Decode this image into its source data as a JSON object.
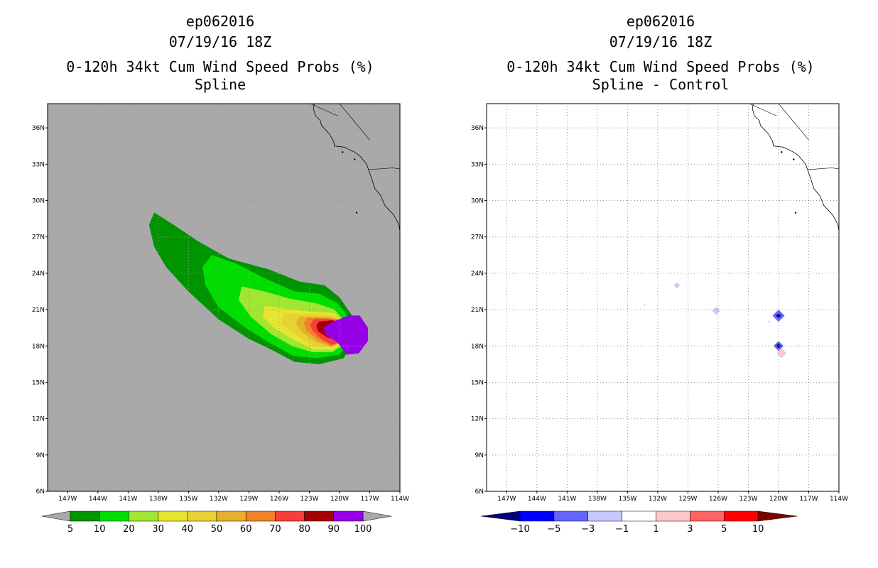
{
  "left_panel": {
    "title_line1": "ep062016",
    "title_line2": "07/19/16 18Z",
    "title_line3": "0-120h 34kt Cum Wind Speed Probs (%)",
    "title_line4": "Spline"
  },
  "right_panel": {
    "title_line1": "ep062016",
    "title_line2": "07/19/16 18Z",
    "title_line3": "0-120h 34kt Cum Wind Speed Probs (%)",
    "title_line4": "Spline - Control"
  },
  "colors": {
    "map_background": "#a9a9a9",
    "grid": "#999999",
    "coast": "#000000"
  },
  "chart_data": [
    {
      "type": "heatmap",
      "title": "0-120h 34kt Cum Wind Speed Probs (%) - Spline",
      "x_ticks": [
        "147W",
        "144W",
        "141W",
        "138W",
        "135W",
        "132W",
        "129W",
        "126W",
        "123W",
        "120W",
        "117W",
        "114W"
      ],
      "y_ticks": [
        "6N",
        "9N",
        "12N",
        "15N",
        "18N",
        "21N",
        "24N",
        "27N",
        "30N",
        "33N",
        "36N"
      ],
      "xlim": [
        -149,
        -114
      ],
      "ylim": [
        6,
        38
      ],
      "colorbar_levels": [
        "5",
        "10",
        "20",
        "30",
        "40",
        "50",
        "60",
        "70",
        "80",
        "90",
        "100"
      ],
      "colorbar_colors": [
        "#009400",
        "#00dd00",
        "#a0e632",
        "#e6e632",
        "#e6d232",
        "#e6af2d",
        "#f08228",
        "#fa3c3c",
        "#a50000",
        "#9600e6"
      ],
      "contours": [
        {
          "level": 5,
          "color": "#009400",
          "polygon": [
            [
              -138.4,
              29.0
            ],
            [
              -136.5,
              28.0
            ],
            [
              -134.0,
              26.6
            ],
            [
              -131.0,
              25.2
            ],
            [
              -127.0,
              24.3
            ],
            [
              -124.0,
              23.3
            ],
            [
              -121.5,
              23.0
            ],
            [
              -120.0,
              22.0
            ],
            [
              -118.6,
              20.3
            ],
            [
              -118.3,
              18.7
            ],
            [
              -119.6,
              17.0
            ],
            [
              -122.0,
              16.5
            ],
            [
              -124.5,
              16.7
            ],
            [
              -126.5,
              17.6
            ],
            [
              -129.0,
              18.6
            ],
            [
              -132.0,
              20.2
            ],
            [
              -135.0,
              22.5
            ],
            [
              -137.2,
              24.5
            ],
            [
              -138.4,
              26.2
            ],
            [
              -138.9,
              28.0
            ]
          ]
        },
        {
          "level": 10,
          "color": "#00dd00",
          "polygon": [
            [
              -132.7,
              25.5
            ],
            [
              -130.3,
              24.8
            ],
            [
              -127.5,
              23.6
            ],
            [
              -124.5,
              22.5
            ],
            [
              -122.0,
              22.3
            ],
            [
              -120.2,
              21.5
            ],
            [
              -119.0,
              20.2
            ],
            [
              -118.8,
              18.6
            ],
            [
              -120.0,
              17.3
            ],
            [
              -122.3,
              17.0
            ],
            [
              -124.6,
              17.2
            ],
            [
              -127.0,
              18.3
            ],
            [
              -129.5,
              19.6
            ],
            [
              -132.0,
              21.2
            ],
            [
              -133.3,
              23.0
            ],
            [
              -133.6,
              24.5
            ]
          ]
        },
        {
          "level": 20,
          "color": "#a0e632",
          "polygon": [
            [
              -129.7,
              22.9
            ],
            [
              -127.5,
              22.5
            ],
            [
              -125.0,
              21.9
            ],
            [
              -122.3,
              21.5
            ],
            [
              -120.5,
              21.0
            ],
            [
              -119.3,
              19.8
            ],
            [
              -119.3,
              18.3
            ],
            [
              -120.7,
              17.5
            ],
            [
              -122.7,
              17.5
            ],
            [
              -124.7,
              18.0
            ],
            [
              -126.8,
              19.0
            ],
            [
              -128.8,
              20.4
            ],
            [
              -130.0,
              21.8
            ]
          ]
        },
        {
          "level": 30,
          "color": "#e6e632",
          "polygon": [
            [
              -127.4,
              21.3
            ],
            [
              -125.0,
              21.0
            ],
            [
              -122.5,
              20.8
            ],
            [
              -120.5,
              20.7
            ],
            [
              -119.5,
              19.8
            ],
            [
              -119.4,
              18.3
            ],
            [
              -120.7,
              17.7
            ],
            [
              -122.5,
              17.7
            ],
            [
              -124.5,
              18.5
            ],
            [
              -126.5,
              19.5
            ],
            [
              -127.6,
              20.4
            ]
          ]
        },
        {
          "level": 40,
          "color": "#e6d232",
          "polygon": [
            [
              -125.5,
              20.7
            ],
            [
              -123.5,
              20.6
            ],
            [
              -121.5,
              20.6
            ],
            [
              -120.2,
              20.4
            ],
            [
              -119.5,
              19.5
            ],
            [
              -119.5,
              18.3
            ],
            [
              -120.8,
              17.9
            ],
            [
              -122.5,
              18.0
            ],
            [
              -124.3,
              18.9
            ],
            [
              -125.8,
              19.8
            ]
          ]
        },
        {
          "level": 50,
          "color": "#e6af2d",
          "polygon": [
            [
              -124.0,
              20.4
            ],
            [
              -122.2,
              20.4
            ],
            [
              -120.5,
              20.3
            ],
            [
              -119.6,
              19.5
            ],
            [
              -119.6,
              18.4
            ],
            [
              -120.8,
              18.0
            ],
            [
              -122.3,
              18.3
            ],
            [
              -123.8,
              19.2
            ],
            [
              -124.3,
              19.9
            ]
          ]
        },
        {
          "level": 60,
          "color": "#f08228",
          "polygon": [
            [
              -123.2,
              20.3
            ],
            [
              -121.5,
              20.3
            ],
            [
              -120.2,
              20.2
            ],
            [
              -119.6,
              19.4
            ],
            [
              -119.6,
              18.4
            ],
            [
              -120.8,
              18.0
            ],
            [
              -122.1,
              18.5
            ],
            [
              -123.3,
              19.3
            ],
            [
              -123.5,
              19.9
            ]
          ]
        },
        {
          "level": 70,
          "color": "#fa3c3c",
          "polygon": [
            [
              -122.5,
              20.2
            ],
            [
              -121.0,
              20.2
            ],
            [
              -120.0,
              20.0
            ],
            [
              -119.6,
              19.3
            ],
            [
              -119.7,
              18.4
            ],
            [
              -120.8,
              18.1
            ],
            [
              -121.8,
              18.6
            ],
            [
              -122.7,
              19.3
            ],
            [
              -122.9,
              19.8
            ]
          ]
        },
        {
          "level": 80,
          "color": "#a50000",
          "polygon": [
            [
              -122.0,
              20.0
            ],
            [
              -120.7,
              20.1
            ],
            [
              -119.9,
              19.8
            ],
            [
              -119.6,
              19.1
            ],
            [
              -120.0,
              18.5
            ],
            [
              -121.2,
              18.7
            ],
            [
              -122.1,
              19.2
            ],
            [
              -122.3,
              19.7
            ]
          ]
        },
        {
          "level": 90,
          "color": "#9600e6",
          "polygon": [
            [
              -120.6,
              20.0
            ],
            [
              -119.1,
              20.5
            ],
            [
              -118.0,
              20.5
            ],
            [
              -117.2,
              19.5
            ],
            [
              -117.2,
              18.4
            ],
            [
              -118.1,
              17.4
            ],
            [
              -119.3,
              17.3
            ],
            [
              -120.2,
              18.3
            ],
            [
              -121.3,
              18.9
            ],
            [
              -121.6,
              19.5
            ]
          ]
        }
      ]
    },
    {
      "type": "heatmap",
      "title": "0-120h 34kt Cum Wind Speed Probs (%) - Spline - Control",
      "x_ticks": [
        "147W",
        "144W",
        "141W",
        "138W",
        "135W",
        "132W",
        "129W",
        "126W",
        "123W",
        "120W",
        "117W",
        "114W"
      ],
      "y_ticks": [
        "6N",
        "9N",
        "12N",
        "15N",
        "18N",
        "21N",
        "24N",
        "27N",
        "30N",
        "33N",
        "36N"
      ],
      "xlim": [
        -149,
        -114
      ],
      "ylim": [
        6,
        38
      ],
      "colorbar_levels": [
        "-10",
        "-5",
        "-3",
        "-1",
        "1",
        "3",
        "5",
        "10"
      ],
      "colorbar_colors": [
        "#000080",
        "#0000ff",
        "#6464ff",
        "#c8c8ff",
        "#ffffff",
        "#ffc8c8",
        "#ff6464",
        "#ff0000",
        "#800000"
      ],
      "blobs": [
        {
          "lon": -130.1,
          "lat": 23.0,
          "value": -2,
          "color": "#c8c8ff",
          "r": 0.3
        },
        {
          "lon": -126.2,
          "lat": 20.9,
          "value": -2,
          "color": "#c8c8ff",
          "r": 0.4
        },
        {
          "lon": -120.0,
          "lat": 20.5,
          "value": -3,
          "color": "#6464ff",
          "r": 0.6
        },
        {
          "lon": -120.0,
          "lat": 20.5,
          "value": -10,
          "color": "#0000a0",
          "r": 0.25
        },
        {
          "lon": -120.0,
          "lat": 18.0,
          "value": -3,
          "color": "#6464ff",
          "r": 0.5
        },
        {
          "lon": -120.0,
          "lat": 18.0,
          "value": -10,
          "color": "#0000a0",
          "r": 0.25
        },
        {
          "lon": -119.7,
          "lat": 17.4,
          "value": 2,
          "color": "#ffc8c8",
          "r": 0.5
        },
        {
          "lon": -133.3,
          "lat": 21.4,
          "value": 2,
          "color": "#ffc8c8",
          "r": 0.12
        },
        {
          "lon": -120.9,
          "lat": 20.0,
          "value": -2,
          "color": "#c8c8ff",
          "r": 0.12
        }
      ]
    }
  ]
}
